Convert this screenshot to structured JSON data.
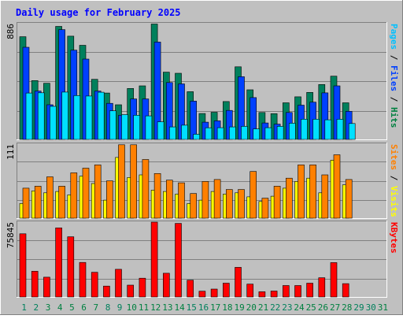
{
  "chart_data": [
    {
      "type": "bar",
      "title": "Daily usage for February 2025",
      "categories": [
        "1",
        "2",
        "3",
        "4",
        "5",
        "6",
        "7",
        "8",
        "9",
        "10",
        "11",
        "12",
        "13",
        "14",
        "15",
        "16",
        "17",
        "18",
        "19",
        "20",
        "21",
        "22",
        "23",
        "24",
        "25",
        "26",
        "27",
        "28",
        "29",
        "30",
        "31"
      ],
      "weekend_days": [
        "1",
        "2",
        "8",
        "9",
        "15",
        "16",
        "22",
        "23",
        "29",
        "30"
      ],
      "day_colors": {
        "weekday": "#008040",
        "weekend": "#00805c"
      },
      "y_tick_label": "886",
      "ylim": [
        0,
        886
      ],
      "right_axis_labels": [
        {
          "text": "Pages",
          "color": "#00c0ff"
        },
        {
          "text": " / ",
          "color": "#000000"
        },
        {
          "text": "Files",
          "color": "#0040ff"
        },
        {
          "text": " / ",
          "color": "#000000"
        },
        {
          "text": "Hits",
          "color": "#008040"
        }
      ],
      "series": [
        {
          "name": "Hits",
          "color": "#00805c",
          "values": [
            786,
            450,
            430,
            865,
            790,
            720,
            460,
            355,
            265,
            390,
            410,
            883,
            515,
            506,
            365,
            198,
            208,
            290,
            556,
            380,
            206,
            197,
            280,
            326,
            360,
            420,
            484,
            280,
            0,
            0,
            0
          ]
        },
        {
          "name": "Files",
          "color": "#0040ff",
          "values": [
            705,
            370,
            265,
            840,
            683,
            615,
            370,
            276,
            185,
            310,
            310,
            745,
            435,
            425,
            293,
            132,
            142,
            222,
            480,
            320,
            126,
            117,
            206,
            262,
            285,
            356,
            410,
            215,
            0,
            0,
            0
          ]
        },
        {
          "name": "Pages",
          "color": "#00e0ff",
          "values": [
            355,
            357,
            253,
            362,
            336,
            332,
            361,
            219,
            190,
            185,
            180,
            135,
            96,
            109,
            40,
            89,
            90,
            96,
            100,
            81,
            90,
            100,
            124,
            155,
            155,
            150,
            155,
            122,
            0,
            0,
            0
          ]
        }
      ]
    },
    {
      "type": "bar",
      "categories": [
        "1",
        "2",
        "3",
        "4",
        "5",
        "6",
        "7",
        "8",
        "9",
        "10",
        "11",
        "12",
        "13",
        "14",
        "15",
        "16",
        "17",
        "18",
        "19",
        "20",
        "21",
        "22",
        "23",
        "24",
        "25",
        "26",
        "27",
        "28",
        "29",
        "30",
        "31"
      ],
      "y_tick_label": "111",
      "ylim": [
        0,
        111
      ],
      "right_axis_labels": [
        {
          "text": "Sites",
          "color": "#ff8000"
        },
        {
          "text": " / ",
          "color": "#000000"
        },
        {
          "text": "Visits",
          "color": "#ffff00"
        }
      ],
      "series": [
        {
          "name": "Visits",
          "color": "#ffff00",
          "values": [
            22,
            41,
            38,
            40,
            35,
            63,
            52,
            27,
            91,
            61,
            65,
            42,
            40,
            36,
            22,
            27,
            40,
            36,
            38,
            32,
            25,
            33,
            45,
            55,
            60,
            38,
            87,
            50,
            0,
            0,
            0
          ]
        },
        {
          "name": "Sites",
          "color": "#ff8000",
          "values": [
            45,
            48,
            62,
            48,
            68,
            75,
            80,
            56,
            110,
            110,
            88,
            67,
            57,
            53,
            37,
            55,
            58,
            43,
            43,
            70,
            30,
            48,
            60,
            80,
            80,
            65,
            95,
            58,
            0,
            0,
            0
          ]
        }
      ]
    },
    {
      "type": "bar",
      "categories": [
        "1",
        "2",
        "3",
        "4",
        "5",
        "6",
        "7",
        "8",
        "9",
        "10",
        "11",
        "12",
        "13",
        "14",
        "15",
        "16",
        "17",
        "18",
        "19",
        "20",
        "21",
        "22",
        "23",
        "24",
        "25",
        "26",
        "27",
        "28",
        "29",
        "30",
        "31"
      ],
      "y_tick_label": "75845",
      "ylim": [
        0,
        75845
      ],
      "right_axis_labels": [
        {
          "text": "KBytes",
          "color": "#ff0000"
        }
      ],
      "series": [
        {
          "name": "KBytes",
          "color": "#ff0000",
          "values": [
            64000,
            26000,
            20000,
            70000,
            61000,
            35000,
            25000,
            11000,
            28000,
            12000,
            19000,
            75845,
            24000,
            74600,
            17000,
            5800,
            8000,
            14000,
            30000,
            13000,
            5300,
            6000,
            11600,
            11600,
            14000,
            19500,
            34800,
            13500,
            0,
            0,
            0
          ]
        }
      ]
    }
  ]
}
